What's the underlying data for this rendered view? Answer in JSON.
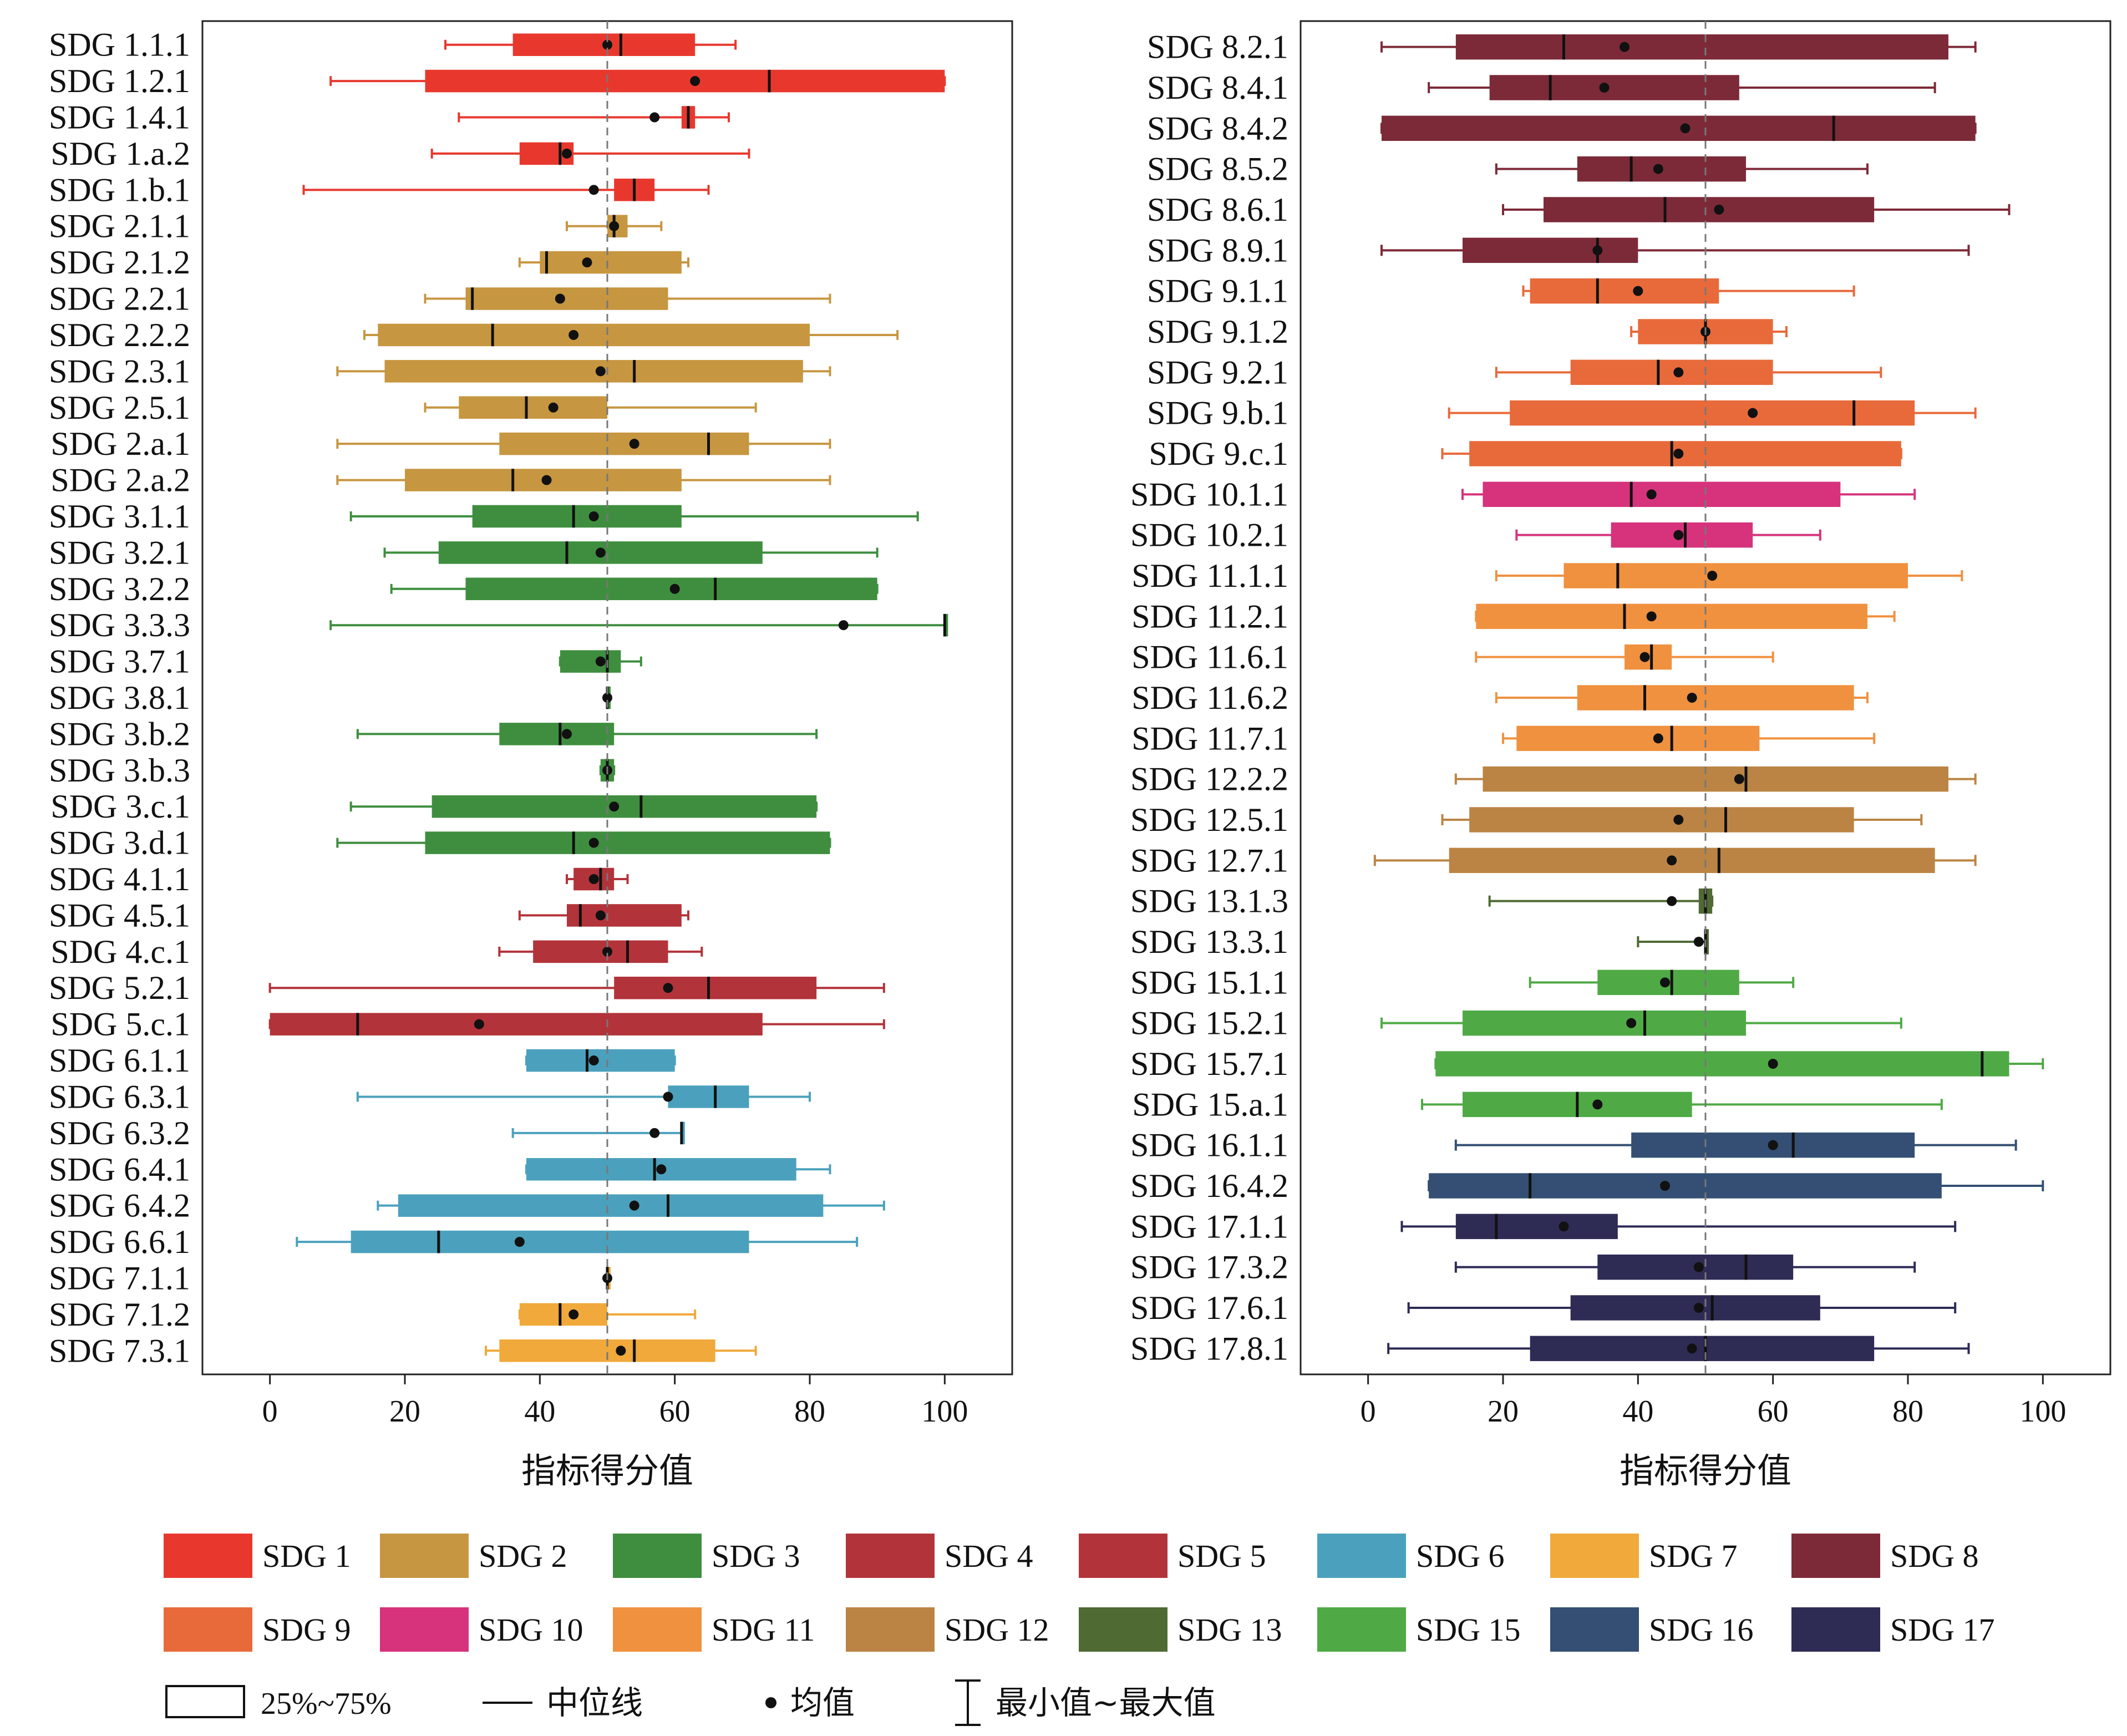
{
  "figure": {
    "legend_groups": [
      {
        "name": "SDG 1",
        "color": "#e8382e"
      },
      {
        "name": "SDG 2",
        "color": "#c79640"
      },
      {
        "name": "SDG 3",
        "color": "#3f8e3f"
      },
      {
        "name": "SDG 4",
        "color": "#b3333a"
      },
      {
        "name": "SDG 5",
        "color": "#b3333a"
      },
      {
        "name": "SDG 6",
        "color": "#4ba1bd"
      },
      {
        "name": "SDG 7",
        "color": "#f0a93a"
      },
      {
        "name": "SDG 8",
        "color": "#7d2a38"
      },
      {
        "name": "SDG 9",
        "color": "#e86a3b"
      },
      {
        "name": "SDG 10",
        "color": "#d6337c"
      },
      {
        "name": "SDG 11",
        "color": "#f0913f"
      },
      {
        "name": "SDG 12",
        "color": "#bb8444"
      },
      {
        "name": "SDG 13",
        "color": "#4f6a33"
      },
      {
        "name": "SDG 15",
        "color": "#4faa45"
      },
      {
        "name": "SDG 16",
        "color": "#344f73"
      },
      {
        "name": "SDG 17",
        "color": "#2e2b55"
      }
    ],
    "legend_keys": {
      "box": "25%~75%",
      "median": "中位线",
      "mean": "均值",
      "range": "最小值~最大值"
    }
  },
  "chart_data": [
    {
      "type": "box",
      "xlabel": "指标得分值",
      "xlim": [
        -10,
        110
      ],
      "xticks": [
        0,
        20,
        40,
        60,
        80,
        100
      ],
      "reference_line": 50,
      "grid": false,
      "items": [
        {
          "label": "SDG 1.1.1",
          "group": "SDG 1",
          "min": 26,
          "q1": 36,
          "median": 52,
          "q3": 63,
          "max": 69,
          "mean": 50
        },
        {
          "label": "SDG 1.2.1",
          "group": "SDG 1",
          "min": 9,
          "q1": 23,
          "median": 74,
          "q3": 100,
          "max": 100,
          "mean": 63
        },
        {
          "label": "SDG 1.4.1",
          "group": "SDG 1",
          "min": 28,
          "q1": 61,
          "median": 62,
          "q3": 63,
          "max": 68,
          "mean": 57
        },
        {
          "label": "SDG 1.a.2",
          "group": "SDG 1",
          "min": 24,
          "q1": 37,
          "median": 43,
          "q3": 45,
          "max": 71,
          "mean": 44
        },
        {
          "label": "SDG 1.b.1",
          "group": "SDG 1",
          "min": 5,
          "q1": 51,
          "median": 54,
          "q3": 57,
          "max": 65,
          "mean": 48
        },
        {
          "label": "SDG 2.1.1",
          "group": "SDG 2",
          "min": 44,
          "q1": 50,
          "median": 51,
          "q3": 53,
          "max": 58,
          "mean": 51
        },
        {
          "label": "SDG 2.1.2",
          "group": "SDG 2",
          "min": 37,
          "q1": 40,
          "median": 41,
          "q3": 61,
          "max": 62,
          "mean": 47
        },
        {
          "label": "SDG 2.2.1",
          "group": "SDG 2",
          "min": 23,
          "q1": 29,
          "median": 30,
          "q3": 59,
          "max": 83,
          "mean": 43
        },
        {
          "label": "SDG 2.2.2",
          "group": "SDG 2",
          "min": 14,
          "q1": 16,
          "median": 33,
          "q3": 80,
          "max": 93,
          "mean": 45
        },
        {
          "label": "SDG 2.3.1",
          "group": "SDG 2",
          "min": 10,
          "q1": 17,
          "median": 54,
          "q3": 79,
          "max": 83,
          "mean": 49
        },
        {
          "label": "SDG 2.5.1",
          "group": "SDG 2",
          "min": 23,
          "q1": 28,
          "median": 38,
          "q3": 50,
          "max": 72,
          "mean": 42
        },
        {
          "label": "SDG 2.a.1",
          "group": "SDG 2",
          "min": 10,
          "q1": 34,
          "median": 65,
          "q3": 71,
          "max": 83,
          "mean": 54
        },
        {
          "label": "SDG 2.a.2",
          "group": "SDG 2",
          "min": 10,
          "q1": 20,
          "median": 36,
          "q3": 61,
          "max": 83,
          "mean": 41
        },
        {
          "label": "SDG 3.1.1",
          "group": "SDG 3",
          "min": 12,
          "q1": 30,
          "median": 45,
          "q3": 61,
          "max": 96,
          "mean": 48
        },
        {
          "label": "SDG 3.2.1",
          "group": "SDG 3",
          "min": 17,
          "q1": 25,
          "median": 44,
          "q3": 73,
          "max": 90,
          "mean": 49
        },
        {
          "label": "SDG 3.2.2",
          "group": "SDG 3",
          "min": 18,
          "q1": 29,
          "median": 66,
          "q3": 90,
          "max": 90,
          "mean": 60
        },
        {
          "label": "SDG 3.3.3",
          "group": "SDG 3",
          "min": 9,
          "q1": 100,
          "median": 100,
          "q3": 100,
          "max": 100,
          "mean": 85
        },
        {
          "label": "SDG 3.7.1",
          "group": "SDG 3",
          "min": 43,
          "q1": 43,
          "median": 50,
          "q3": 52,
          "max": 55,
          "mean": 49
        },
        {
          "label": "SDG 3.8.1",
          "group": "SDG 3",
          "min": 50,
          "q1": 50,
          "median": 50,
          "q3": 50,
          "max": 50,
          "mean": 50
        },
        {
          "label": "SDG 3.b.2",
          "group": "SDG 3",
          "min": 13,
          "q1": 34,
          "median": 43,
          "q3": 51,
          "max": 81,
          "mean": 44
        },
        {
          "label": "SDG 3.b.3",
          "group": "SDG 3",
          "min": 49,
          "q1": 49,
          "median": 50,
          "q3": 51,
          "max": 51,
          "mean": 50
        },
        {
          "label": "SDG 3.c.1",
          "group": "SDG 3",
          "min": 12,
          "q1": 24,
          "median": 55,
          "q3": 81,
          "max": 81,
          "mean": 51
        },
        {
          "label": "SDG 3.d.1",
          "group": "SDG 3",
          "min": 10,
          "q1": 23,
          "median": 45,
          "q3": 83,
          "max": 83,
          "mean": 48
        },
        {
          "label": "SDG 4.1.1",
          "group": "SDG 4",
          "min": 44,
          "q1": 45,
          "median": 49,
          "q3": 51,
          "max": 53,
          "mean": 48
        },
        {
          "label": "SDG 4.5.1",
          "group": "SDG 4",
          "min": 37,
          "q1": 44,
          "median": 46,
          "q3": 61,
          "max": 62,
          "mean": 49
        },
        {
          "label": "SDG 4.c.1",
          "group": "SDG 4",
          "min": 34,
          "q1": 39,
          "median": 53,
          "q3": 59,
          "max": 64,
          "mean": 50
        },
        {
          "label": "SDG 5.2.1",
          "group": "SDG 5",
          "min": 0,
          "q1": 51,
          "median": 65,
          "q3": 81,
          "max": 91,
          "mean": 59
        },
        {
          "label": "SDG 5.c.1",
          "group": "SDG 5",
          "min": 0,
          "q1": 0,
          "median": 13,
          "q3": 73,
          "max": 91,
          "mean": 31
        },
        {
          "label": "SDG 6.1.1",
          "group": "SDG 6",
          "min": 38,
          "q1": 38,
          "median": 47,
          "q3": 60,
          "max": 60,
          "mean": 48
        },
        {
          "label": "SDG 6.3.1",
          "group": "SDG 6",
          "min": 13,
          "q1": 59,
          "median": 66,
          "q3": 71,
          "max": 80,
          "mean": 59
        },
        {
          "label": "SDG 6.3.2",
          "group": "SDG 6",
          "min": 36,
          "q1": 61,
          "median": 61,
          "q3": 61,
          "max": 61,
          "mean": 57
        },
        {
          "label": "SDG 6.4.1",
          "group": "SDG 6",
          "min": 38,
          "q1": 38,
          "median": 57,
          "q3": 78,
          "max": 83,
          "mean": 58
        },
        {
          "label": "SDG 6.4.2",
          "group": "SDG 6",
          "min": 16,
          "q1": 19,
          "median": 59,
          "q3": 82,
          "max": 91,
          "mean": 54
        },
        {
          "label": "SDG 6.6.1",
          "group": "SDG 6",
          "min": 4,
          "q1": 12,
          "median": 25,
          "q3": 71,
          "max": 87,
          "mean": 37
        },
        {
          "label": "SDG 7.1.1",
          "group": "SDG 7",
          "min": 50,
          "q1": 50,
          "median": 50,
          "q3": 50,
          "max": 50,
          "mean": 50
        },
        {
          "label": "SDG 7.1.2",
          "group": "SDG 7",
          "min": 37,
          "q1": 37,
          "median": 43,
          "q3": 50,
          "max": 63,
          "mean": 45
        },
        {
          "label": "SDG 7.3.1",
          "group": "SDG 7",
          "min": 32,
          "q1": 34,
          "median": 54,
          "q3": 66,
          "max": 72,
          "mean": 52
        }
      ]
    },
    {
      "type": "box",
      "xlabel": "指标得分值",
      "xlim": [
        -10,
        110
      ],
      "xticks": [
        0,
        20,
        40,
        60,
        80,
        100
      ],
      "reference_line": 50,
      "grid": false,
      "items": [
        {
          "label": "SDG 8.2.1",
          "group": "SDG 8",
          "min": 2,
          "q1": 13,
          "median": 29,
          "q3": 86,
          "max": 90,
          "mean": 38
        },
        {
          "label": "SDG 8.4.1",
          "group": "SDG 8",
          "min": 9,
          "q1": 18,
          "median": 27,
          "q3": 55,
          "max": 84,
          "mean": 35
        },
        {
          "label": "SDG 8.4.2",
          "group": "SDG 8",
          "min": 2,
          "q1": 2,
          "median": 69,
          "q3": 90,
          "max": 90,
          "mean": 47
        },
        {
          "label": "SDG 8.5.2",
          "group": "SDG 8",
          "min": 19,
          "q1": 31,
          "median": 39,
          "q3": 56,
          "max": 74,
          "mean": 43
        },
        {
          "label": "SDG 8.6.1",
          "group": "SDG 8",
          "min": 20,
          "q1": 26,
          "median": 44,
          "q3": 75,
          "max": 95,
          "mean": 52
        },
        {
          "label": "SDG 8.9.1",
          "group": "SDG 8",
          "min": 2,
          "q1": 14,
          "median": 34,
          "q3": 40,
          "max": 89,
          "mean": 34
        },
        {
          "label": "SDG 9.1.1",
          "group": "SDG 9",
          "min": 23,
          "q1": 24,
          "median": 34,
          "q3": 52,
          "max": 72,
          "mean": 40
        },
        {
          "label": "SDG 9.1.2",
          "group": "SDG 9",
          "min": 39,
          "q1": 40,
          "median": 50,
          "q3": 60,
          "max": 62,
          "mean": 50
        },
        {
          "label": "SDG 9.2.1",
          "group": "SDG 9",
          "min": 19,
          "q1": 30,
          "median": 43,
          "q3": 60,
          "max": 76,
          "mean": 46
        },
        {
          "label": "SDG 9.b.1",
          "group": "SDG 9",
          "min": 12,
          "q1": 21,
          "median": 72,
          "q3": 81,
          "max": 90,
          "mean": 57
        },
        {
          "label": "SDG 9.c.1",
          "group": "SDG 9",
          "min": 11,
          "q1": 15,
          "median": 45,
          "q3": 79,
          "max": 79,
          "mean": 46
        },
        {
          "label": "SDG 10.1.1",
          "group": "SDG 10",
          "min": 14,
          "q1": 17,
          "median": 39,
          "q3": 70,
          "max": 81,
          "mean": 42
        },
        {
          "label": "SDG 10.2.1",
          "group": "SDG 10",
          "min": 22,
          "q1": 36,
          "median": 47,
          "q3": 57,
          "max": 67,
          "mean": 46
        },
        {
          "label": "SDG 11.1.1",
          "group": "SDG 11",
          "min": 19,
          "q1": 29,
          "median": 37,
          "q3": 80,
          "max": 88,
          "mean": 51
        },
        {
          "label": "SDG 11.2.1",
          "group": "SDG 11",
          "min": 16,
          "q1": 16,
          "median": 38,
          "q3": 74,
          "max": 78,
          "mean": 42
        },
        {
          "label": "SDG 11.6.1",
          "group": "SDG 11",
          "min": 16,
          "q1": 38,
          "median": 42,
          "q3": 45,
          "max": 60,
          "mean": 41
        },
        {
          "label": "SDG 11.6.2",
          "group": "SDG 11",
          "min": 19,
          "q1": 31,
          "median": 41,
          "q3": 72,
          "max": 74,
          "mean": 48
        },
        {
          "label": "SDG 11.7.1",
          "group": "SDG 11",
          "min": 20,
          "q1": 22,
          "median": 45,
          "q3": 58,
          "max": 75,
          "mean": 43
        },
        {
          "label": "SDG 12.2.2",
          "group": "SDG 12",
          "min": 13,
          "q1": 17,
          "median": 56,
          "q3": 86,
          "max": 90,
          "mean": 55
        },
        {
          "label": "SDG 12.5.1",
          "group": "SDG 12",
          "min": 11,
          "q1": 15,
          "median": 53,
          "q3": 72,
          "max": 82,
          "mean": 46
        },
        {
          "label": "SDG 12.7.1",
          "group": "SDG 12",
          "min": 1,
          "q1": 12,
          "median": 52,
          "q3": 84,
          "max": 90,
          "mean": 45
        },
        {
          "label": "SDG 13.1.3",
          "group": "SDG 13",
          "min": 18,
          "q1": 49,
          "median": 50,
          "q3": 51,
          "max": 51,
          "mean": 45
        },
        {
          "label": "SDG 13.3.1",
          "group": "SDG 13",
          "min": 40,
          "q1": 50,
          "median": 50,
          "q3": 50,
          "max": 50,
          "mean": 49
        },
        {
          "label": "SDG 15.1.1",
          "group": "SDG 15",
          "min": 24,
          "q1": 34,
          "median": 45,
          "q3": 55,
          "max": 63,
          "mean": 44
        },
        {
          "label": "SDG 15.2.1",
          "group": "SDG 15",
          "min": 2,
          "q1": 14,
          "median": 41,
          "q3": 56,
          "max": 79,
          "mean": 39
        },
        {
          "label": "SDG 15.7.1",
          "group": "SDG 15",
          "min": 10,
          "q1": 10,
          "median": 91,
          "q3": 95,
          "max": 100,
          "mean": 60
        },
        {
          "label": "SDG 15.a.1",
          "group": "SDG 15",
          "min": 8,
          "q1": 14,
          "median": 31,
          "q3": 48,
          "max": 85,
          "mean": 34
        },
        {
          "label": "SDG 16.1.1",
          "group": "SDG 16",
          "min": 13,
          "q1": 39,
          "median": 63,
          "q3": 81,
          "max": 96,
          "mean": 60
        },
        {
          "label": "SDG 16.4.2",
          "group": "SDG 16",
          "min": 9,
          "q1": 9,
          "median": 24,
          "q3": 85,
          "max": 100,
          "mean": 44
        },
        {
          "label": "SDG 17.1.1",
          "group": "SDG 17",
          "min": 5,
          "q1": 13,
          "median": 19,
          "q3": 37,
          "max": 87,
          "mean": 29
        },
        {
          "label": "SDG 17.3.2",
          "group": "SDG 17",
          "min": 13,
          "q1": 34,
          "median": 56,
          "q3": 63,
          "max": 81,
          "mean": 49
        },
        {
          "label": "SDG 17.6.1",
          "group": "SDG 17",
          "min": 6,
          "q1": 30,
          "median": 51,
          "q3": 67,
          "max": 87,
          "mean": 49
        },
        {
          "label": "SDG 17.8.1",
          "group": "SDG 17",
          "min": 3,
          "q1": 24,
          "median": 50,
          "q3": 75,
          "max": 89,
          "mean": 48
        }
      ]
    }
  ]
}
